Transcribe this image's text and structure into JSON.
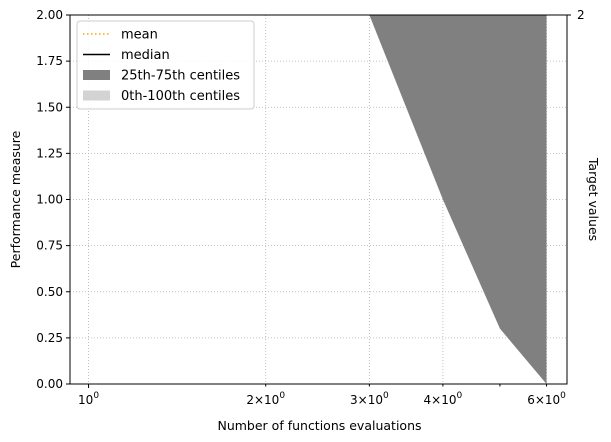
{
  "chart_data": {
    "type": "area",
    "xlabel": "Number of functions evaluations",
    "ylabel": "Performance measure",
    "right_label": "Target values",
    "right_tick": "2",
    "x_scale": "log",
    "xlim": [
      0.93,
      6.5
    ],
    "ylim": [
      0,
      2
    ],
    "grid": true,
    "legend_placement": "top-left",
    "x_ticks": [
      {
        "value": 1,
        "label": "10",
        "sup": "0"
      },
      {
        "value": 2,
        "label": "2×10",
        "sup": "0"
      },
      {
        "value": 3,
        "label": "3×10",
        "sup": "0"
      },
      {
        "value": 4,
        "label": "4×10",
        "sup": "0"
      },
      {
        "value": 6,
        "label": "6×10",
        "sup": "0"
      }
    ],
    "y_ticks": [
      "0.00",
      "0.25",
      "0.50",
      "0.75",
      "1.00",
      "1.25",
      "1.50",
      "1.75",
      "2.00"
    ],
    "legend": [
      {
        "label": "mean",
        "style": "dotted-line",
        "color": "#ffa500"
      },
      {
        "label": "median",
        "style": "line",
        "color": "#000000"
      },
      {
        "label": "25th-75th centiles",
        "style": "patch",
        "color": "#808080"
      },
      {
        "label": "0th-100th centiles",
        "style": "patch",
        "color": "#d3d3d3"
      }
    ],
    "series": [
      {
        "name": "25th-75th centiles",
        "color": "#808080",
        "lower": [
          [
            3,
            2.0
          ],
          [
            4,
            1.0
          ],
          [
            5,
            0.3
          ],
          [
            6,
            0.0
          ]
        ],
        "upper": [
          [
            3,
            2.0
          ],
          [
            6,
            2.0
          ]
        ]
      }
    ]
  }
}
